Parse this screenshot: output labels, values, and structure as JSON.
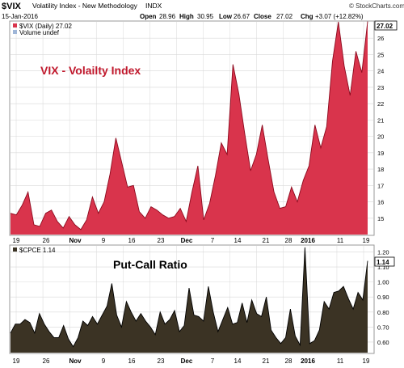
{
  "header": {
    "symbol": "$VIX",
    "name": "Volatility Index - New Methodology",
    "exchange": "INDX",
    "date": "15-Jan-2016",
    "open_label": "Open",
    "open": "28.96",
    "high_label": "High",
    "high": "30.95",
    "low_label": "Low",
    "low": "26.67",
    "close_label": "Close",
    "close": "27.02",
    "chg_label": "Chg",
    "chg": "+3.07 (+12.82%)",
    "brand": "© StockCharts.com"
  },
  "colors": {
    "vix_fill": "#d9344c",
    "vix_fill_top": "#c8203a",
    "vix_line": "#8c0a1e",
    "cpce_fill": "#3b3324",
    "cpce_line": "#000000",
    "annotation": "#c0182c",
    "grid": "#d8d8d8",
    "background": "#ffffff"
  },
  "chart_data": [
    {
      "type": "area",
      "legend": "$VIX (Daily) 27.02",
      "legend2": "Volume undef",
      "annotation": "VIX - Volailty Index",
      "last_value_label": "27.02",
      "ylim": [
        14,
        27
      ],
      "yticks": [
        "15",
        "16",
        "17",
        "18",
        "19",
        "20",
        "21",
        "22",
        "23",
        "24",
        "25",
        "26"
      ],
      "series": [
        {
          "values": [
            15.3,
            15.2,
            15.8,
            16.6,
            14.6,
            14.5,
            15.3,
            15.5,
            14.8,
            14.4,
            15.1,
            14.6,
            14.3,
            14.9,
            16.3,
            15.3,
            16.0,
            17.7,
            19.9,
            18.4,
            16.9,
            17.0,
            15.4,
            15.0,
            15.7,
            15.5,
            15.2,
            15.0,
            15.1,
            15.6,
            14.8,
            16.6,
            18.2,
            14.9,
            15.9,
            17.6,
            19.6,
            18.9,
            24.4,
            22.6,
            20.2,
            17.9,
            18.9,
            20.7,
            18.6,
            16.6,
            15.6,
            15.7,
            16.9,
            16.0,
            17.3,
            18.2,
            20.7,
            19.3,
            20.6,
            24.6,
            27.0,
            24.3,
            22.5,
            25.2,
            23.9,
            27.02
          ]
        }
      ]
    },
    {
      "type": "area",
      "legend": "$CPCE 1.14",
      "annotation": "Put-Call Ratio",
      "last_value_label": "1.14",
      "ylim": [
        0.53,
        1.24
      ],
      "yticks": [
        "0.60",
        "0.70",
        "0.80",
        "0.90",
        "1.00",
        "1.10",
        "1.20"
      ],
      "series": [
        {
          "values": [
            0.66,
            0.72,
            0.72,
            0.75,
            0.73,
            0.66,
            0.79,
            0.72,
            0.67,
            0.63,
            0.63,
            0.71,
            0.62,
            0.57,
            0.63,
            0.74,
            0.71,
            0.77,
            0.72,
            0.78,
            0.84,
            0.99,
            0.78,
            0.7,
            0.87,
            0.8,
            0.74,
            0.79,
            0.74,
            0.7,
            0.65,
            0.8,
            0.72,
            0.75,
            0.81,
            0.67,
            0.71,
            0.96,
            0.78,
            0.77,
            0.74,
            0.97,
            0.8,
            0.67,
            0.75,
            0.83,
            0.72,
            0.73,
            0.86,
            0.73,
            0.88,
            0.79,
            0.77,
            0.9,
            0.68,
            0.63,
            0.59,
            0.63,
            0.82,
            0.64,
            0.58,
            1.23,
            0.59,
            0.61,
            0.68,
            0.87,
            0.82,
            0.93,
            0.94,
            0.97,
            0.89,
            0.82,
            0.93,
            0.88,
            1.14
          ]
        }
      ]
    }
  ],
  "x_axis": {
    "labels": [
      "19",
      "26",
      "Nov",
      "9",
      "16",
      "23",
      "Dec",
      "7",
      "14",
      "21",
      "28",
      "2016",
      "11",
      "19"
    ],
    "bold": [
      false,
      false,
      true,
      false,
      false,
      false,
      true,
      false,
      false,
      false,
      false,
      true,
      false,
      false
    ]
  }
}
